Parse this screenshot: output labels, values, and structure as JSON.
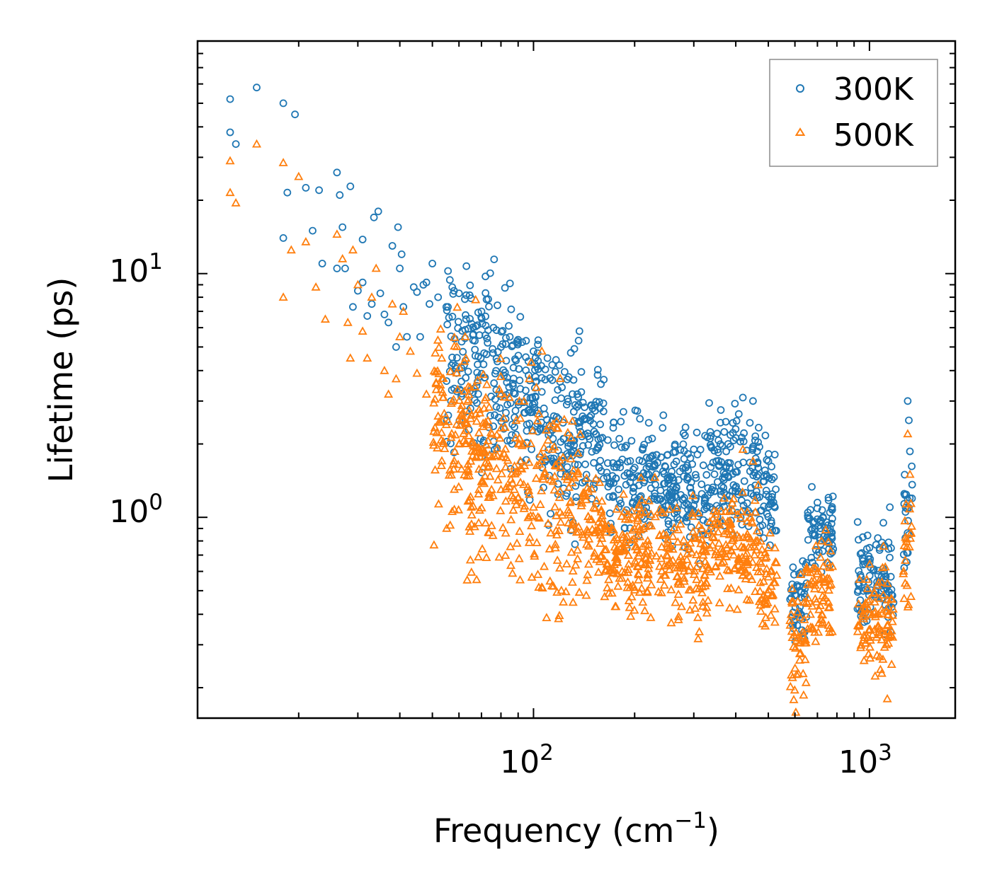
{
  "chart_data": {
    "type": "scatter",
    "title": "",
    "xlabel": "Frequency (cm",
    "xlabel_sup": "−1",
    "xlabel_end": ")",
    "ylabel": "Lifetime (ps)",
    "xscale": "log",
    "yscale": "log",
    "xlim": [
      10,
      1800
    ],
    "ylim": [
      0.15,
      90
    ],
    "x_ticks": [
      {
        "value": 100,
        "base": "10",
        "exp": "2"
      },
      {
        "value": 1000,
        "base": "10",
        "exp": "3"
      }
    ],
    "y_ticks": [
      {
        "value": 1,
        "base": "10",
        "exp": "0"
      },
      {
        "value": 10,
        "base": "10",
        "exp": "1"
      }
    ],
    "legend_position": "top-right",
    "series": [
      {
        "name": "300K",
        "marker": "circle",
        "color": "#1f77b4",
        "points": [
          [
            12.5,
            52
          ],
          [
            12.5,
            38
          ],
          [
            13,
            34
          ],
          [
            15,
            58
          ],
          [
            18,
            50
          ],
          [
            19.5,
            45
          ],
          [
            18.5,
            21.5
          ],
          [
            21,
            22.5
          ],
          [
            23,
            22
          ],
          [
            26,
            26
          ],
          [
            26.5,
            21
          ],
          [
            28.5,
            22.8
          ],
          [
            18,
            14
          ],
          [
            22,
            15
          ],
          [
            23.5,
            11
          ],
          [
            26,
            10.5
          ],
          [
            27.5,
            10.5
          ],
          [
            27,
            15.5
          ],
          [
            29,
            7.3
          ],
          [
            30,
            8.5
          ],
          [
            31,
            13.8
          ],
          [
            31,
            9.2
          ],
          [
            32,
            6.7
          ],
          [
            33,
            7.5
          ],
          [
            33.5,
            17
          ],
          [
            34.5,
            18
          ],
          [
            35,
            8.3
          ],
          [
            36,
            6.8
          ],
          [
            37,
            6.3
          ],
          [
            38,
            13
          ],
          [
            39,
            5
          ],
          [
            39.5,
            15.5
          ],
          [
            40,
            10.5
          ],
          [
            40.5,
            12
          ],
          [
            41,
            7.3
          ],
          [
            42,
            5.5
          ],
          [
            44,
            8.8
          ],
          [
            45,
            8.4
          ],
          [
            46,
            5.5
          ],
          [
            47,
            9
          ],
          [
            48,
            9.2
          ],
          [
            49,
            7.5
          ],
          [
            50,
            11
          ],
          [
            52,
            8
          ],
          [
            55,
            7.3
          ],
          [
            58,
            8.5
          ],
          [
            60,
            8.3
          ],
          [
            63,
            6.5
          ],
          [
            66,
            5.6
          ],
          [
            70,
            7
          ],
          [
            73,
            5.2
          ],
          [
            76,
            6
          ],
          [
            80,
            5
          ],
          [
            85,
            5.5
          ],
          [
            90,
            5.2
          ],
          [
            95,
            5.3
          ],
          [
            100,
            4.8
          ],
          [
            110,
            4.5
          ],
          [
            120,
            3.6
          ],
          [
            135,
            3.2
          ],
          [
            150,
            2.8
          ],
          [
            170,
            1.4
          ],
          [
            180,
            2.1
          ],
          [
            200,
            1.6
          ],
          [
            220,
            1.5
          ],
          [
            250,
            1.8
          ],
          [
            300,
            1.9
          ],
          [
            350,
            1.7
          ],
          [
            420,
            3.1
          ],
          [
            450,
            3
          ],
          [
            500,
            1.7
          ],
          [
            600,
            0.48
          ],
          [
            650,
            0.65
          ],
          [
            700,
            1.15
          ],
          [
            750,
            0.9
          ],
          [
            1000,
            0.75
          ],
          [
            1100,
            0.95
          ],
          [
            1150,
            1.1
          ],
          [
            1300,
            3
          ],
          [
            1310,
            2.5
          ]
        ],
        "bands": [
          [
            55,
            140,
            3.3,
            0.52,
            0.22
          ],
          [
            140,
            162,
            2.2,
            0.38,
            0.2
          ],
          [
            165,
            270,
            1.35,
            0.35,
            0.18
          ],
          [
            270,
            330,
            1.25,
            0.35,
            0.18
          ],
          [
            330,
            470,
            1.55,
            0.32,
            0.18
          ],
          [
            470,
            530,
            1.25,
            0.3,
            0.2
          ],
          [
            580,
            650,
            0.45,
            0.28,
            0.2
          ],
          [
            650,
            780,
            0.9,
            0.25,
            0.2
          ],
          [
            920,
            1180,
            0.55,
            0.3,
            0.25
          ],
          [
            1260,
            1340,
            1.2,
            0.42,
            0.3
          ]
        ]
      },
      {
        "name": "500K",
        "marker": "triangle",
        "color": "#ff7f0e",
        "points": [
          [
            12.5,
            29
          ],
          [
            12.5,
            21.5
          ],
          [
            13,
            19.5
          ],
          [
            15,
            34
          ],
          [
            18,
            28.5
          ],
          [
            20,
            25
          ],
          [
            18,
            8
          ],
          [
            19,
            12.5
          ],
          [
            21,
            13.5
          ],
          [
            22.5,
            8.8
          ],
          [
            24,
            6.5
          ],
          [
            26,
            14.5
          ],
          [
            27,
            11.5
          ],
          [
            28,
            6.3
          ],
          [
            28.5,
            4.5
          ],
          [
            29,
            12.5
          ],
          [
            30,
            9
          ],
          [
            31,
            5.8
          ],
          [
            32,
            4.5
          ],
          [
            33,
            8
          ],
          [
            34,
            10.5
          ],
          [
            36,
            4
          ],
          [
            37,
            3.2
          ],
          [
            38,
            7.5
          ],
          [
            39,
            3.7
          ],
          [
            40,
            5.5
          ],
          [
            41,
            7
          ],
          [
            43,
            4.8
          ],
          [
            45,
            3.9
          ],
          [
            48,
            3.2
          ],
          [
            52,
            2.6
          ],
          [
            55,
            2.4
          ],
          [
            60,
            2
          ],
          [
            65,
            1.7
          ],
          [
            70,
            1.4
          ],
          [
            75,
            1.3
          ],
          [
            80,
            1.3
          ],
          [
            90,
            1.2
          ],
          [
            100,
            1.1
          ],
          [
            120,
            1.05
          ],
          [
            140,
            0.85
          ],
          [
            175,
            0.43
          ],
          [
            200,
            0.9
          ],
          [
            250,
            0.78
          ],
          [
            270,
            0.38
          ],
          [
            300,
            0.82
          ],
          [
            420,
            1.9
          ],
          [
            450,
            1.7
          ],
          [
            500,
            0.75
          ],
          [
            590,
            0.22
          ],
          [
            650,
            0.45
          ],
          [
            720,
            0.8
          ],
          [
            760,
            0.35
          ],
          [
            1000,
            0.4
          ],
          [
            1100,
            0.48
          ],
          [
            1130,
            0.18
          ],
          [
            1300,
            2.2
          ],
          [
            1320,
            1.5
          ]
        ],
        "bands": [
          [
            50,
            140,
            1.55,
            0.6,
            0.22
          ],
          [
            140,
            160,
            0.9,
            0.3,
            0.18
          ],
          [
            162,
            270,
            0.7,
            0.32,
            0.18
          ],
          [
            270,
            330,
            0.65,
            0.35,
            0.18
          ],
          [
            330,
            470,
            0.75,
            0.32,
            0.18
          ],
          [
            470,
            530,
            0.55,
            0.3,
            0.2
          ],
          [
            580,
            650,
            0.3,
            0.3,
            0.2
          ],
          [
            650,
            780,
            0.5,
            0.28,
            0.2
          ],
          [
            920,
            1180,
            0.38,
            0.3,
            0.25
          ],
          [
            1260,
            1340,
            0.75,
            0.42,
            0.3
          ]
        ]
      }
    ]
  }
}
